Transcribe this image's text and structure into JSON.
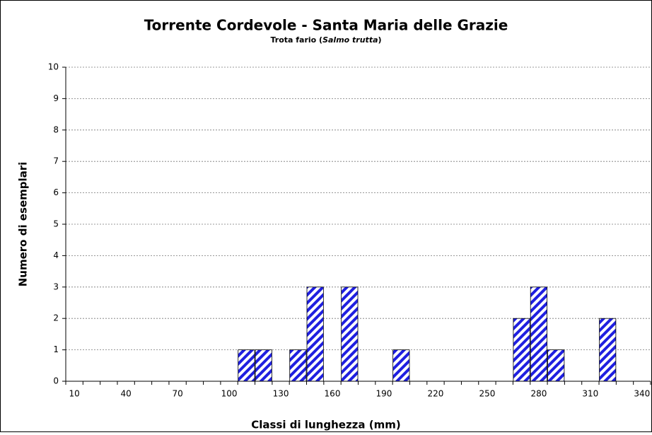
{
  "chart_data": {
    "type": "bar",
    "title": "Torrente Cordevole - Santa Maria delle Grazie",
    "subtitle": [
      "Trota fario (",
      "Salmo trutta",
      ")"
    ],
    "x_label": "Classi di lunghezza (mm)",
    "y_label": "Numero di esemplari",
    "categories": [
      10,
      null,
      null,
      40,
      null,
      null,
      70,
      null,
      null,
      100,
      null,
      null,
      130,
      null,
      null,
      160,
      null,
      null,
      190,
      null,
      null,
      220,
      null,
      null,
      250,
      null,
      null,
      280,
      null,
      null,
      310,
      null,
      null,
      340
    ],
    "values": [
      0,
      0,
      0,
      0,
      0,
      0,
      0,
      0,
      0,
      0,
      1,
      1,
      0,
      1,
      3,
      0,
      3,
      0,
      0,
      1,
      0,
      0,
      0,
      0,
      0,
      0,
      2,
      3,
      1,
      0,
      0,
      2,
      0,
      0
    ],
    "color": "#1f1fe0",
    "ylim": [
      0,
      10
    ],
    "yticks": [
      0,
      1,
      2,
      3,
      4,
      5,
      6,
      7,
      8,
      9,
      10
    ],
    "grid": true
  }
}
